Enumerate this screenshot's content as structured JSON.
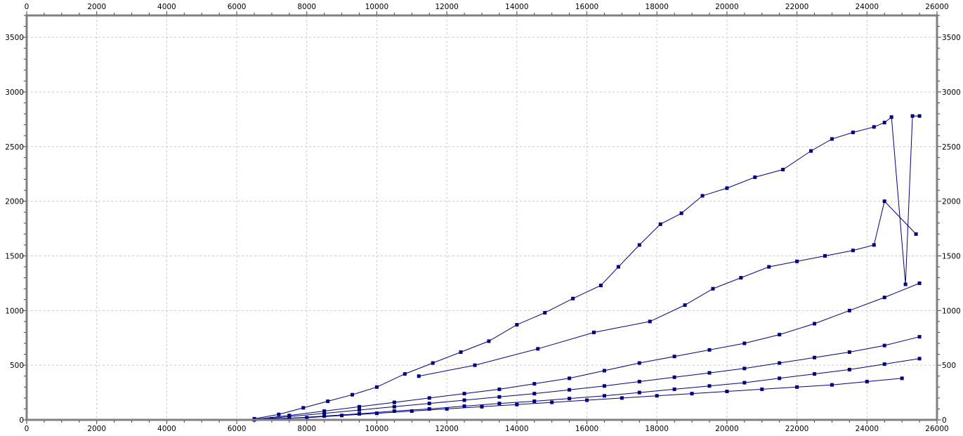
{
  "chart_data": {
    "type": "scatter",
    "title": "",
    "xlabel": "",
    "ylabel": "",
    "xlim": [
      0,
      26000
    ],
    "ylim": [
      0,
      3700
    ],
    "x_ticks": [
      0,
      2000,
      4000,
      6000,
      8000,
      10000,
      12000,
      14000,
      16000,
      18000,
      20000,
      22000,
      24000,
      26000
    ],
    "y_ticks": [
      0,
      500,
      1000,
      1500,
      2000,
      2500,
      3000,
      3500
    ],
    "grid": true,
    "legend": "none",
    "series_color": "#000080",
    "frame_color": "#808080",
    "grid_color": "#cccccc",
    "series": [
      {
        "name": "",
        "x": [
          6500,
          7200,
          7900,
          8600,
          9300,
          10000,
          10800,
          11600,
          12400,
          13200,
          14000,
          14800,
          15600,
          16400,
          16900,
          17500,
          18100,
          18700,
          19300,
          20000,
          20800,
          21600,
          22400,
          23000,
          23600,
          24200,
          24500,
          24700,
          25100,
          25300,
          25500
        ],
        "y": [
          10,
          50,
          110,
          170,
          230,
          300,
          420,
          520,
          620,
          720,
          870,
          980,
          1110,
          1230,
          1400,
          1600,
          1790,
          1890,
          2050,
          2120,
          2220,
          2290,
          2460,
          2570,
          2630,
          2680,
          2720,
          2770,
          1240,
          2780,
          2780
        ]
      },
      {
        "name": "",
        "x": [
          6500,
          7500,
          8500,
          9500,
          10500,
          11500,
          12500,
          13500,
          14500,
          15500,
          16500,
          17500,
          18500,
          19500,
          20500,
          21500,
          22500,
          23500,
          24500,
          25500
        ],
        "y": [
          5,
          40,
          80,
          120,
          160,
          200,
          240,
          280,
          330,
          380,
          450,
          520,
          580,
          640,
          700,
          780,
          880,
          1000,
          1120,
          1250
        ]
      },
      {
        "name": "",
        "x": [
          6500,
          7500,
          8500,
          9500,
          10500,
          11500,
          12500,
          13500,
          14500,
          15500,
          16500,
          17500,
          18500,
          19500,
          20500,
          21500,
          22500,
          23500,
          24500,
          25500
        ],
        "y": [
          0,
          30,
          60,
          90,
          120,
          150,
          180,
          210,
          240,
          275,
          310,
          350,
          390,
          430,
          470,
          520,
          570,
          620,
          680,
          760
        ]
      },
      {
        "name": "",
        "x": [
          6500,
          7500,
          8500,
          9500,
          10500,
          11500,
          12500,
          13500,
          14500,
          15500,
          16500,
          17500,
          18500,
          19500,
          20500,
          21500,
          22500,
          23500,
          24500,
          25500
        ],
        "y": [
          0,
          15,
          35,
          55,
          80,
          100,
          125,
          150,
          170,
          195,
          220,
          250,
          280,
          310,
          340,
          380,
          420,
          460,
          510,
          560
        ]
      },
      {
        "name": "",
        "x": [
          7000,
          8000,
          9000,
          10000,
          11000,
          12000,
          13000,
          14000,
          15000,
          16000,
          17000,
          18000,
          19000,
          20000,
          21000,
          22000,
          23000,
          24000,
          25000
        ],
        "y": [
          10,
          20,
          40,
          60,
          80,
          100,
          120,
          140,
          160,
          180,
          200,
          220,
          240,
          260,
          280,
          300,
          320,
          350,
          380
        ]
      },
      {
        "name": "",
        "x": [
          11200,
          12800,
          14600,
          16200,
          17800,
          18800,
          19600,
          20400,
          21200,
          22000,
          22800,
          23600,
          24200,
          24500,
          25400
        ],
        "y": [
          400,
          500,
          650,
          800,
          900,
          1050,
          1200,
          1300,
          1400,
          1450,
          1500,
          1550,
          1600,
          2000,
          1700
        ]
      }
    ]
  }
}
